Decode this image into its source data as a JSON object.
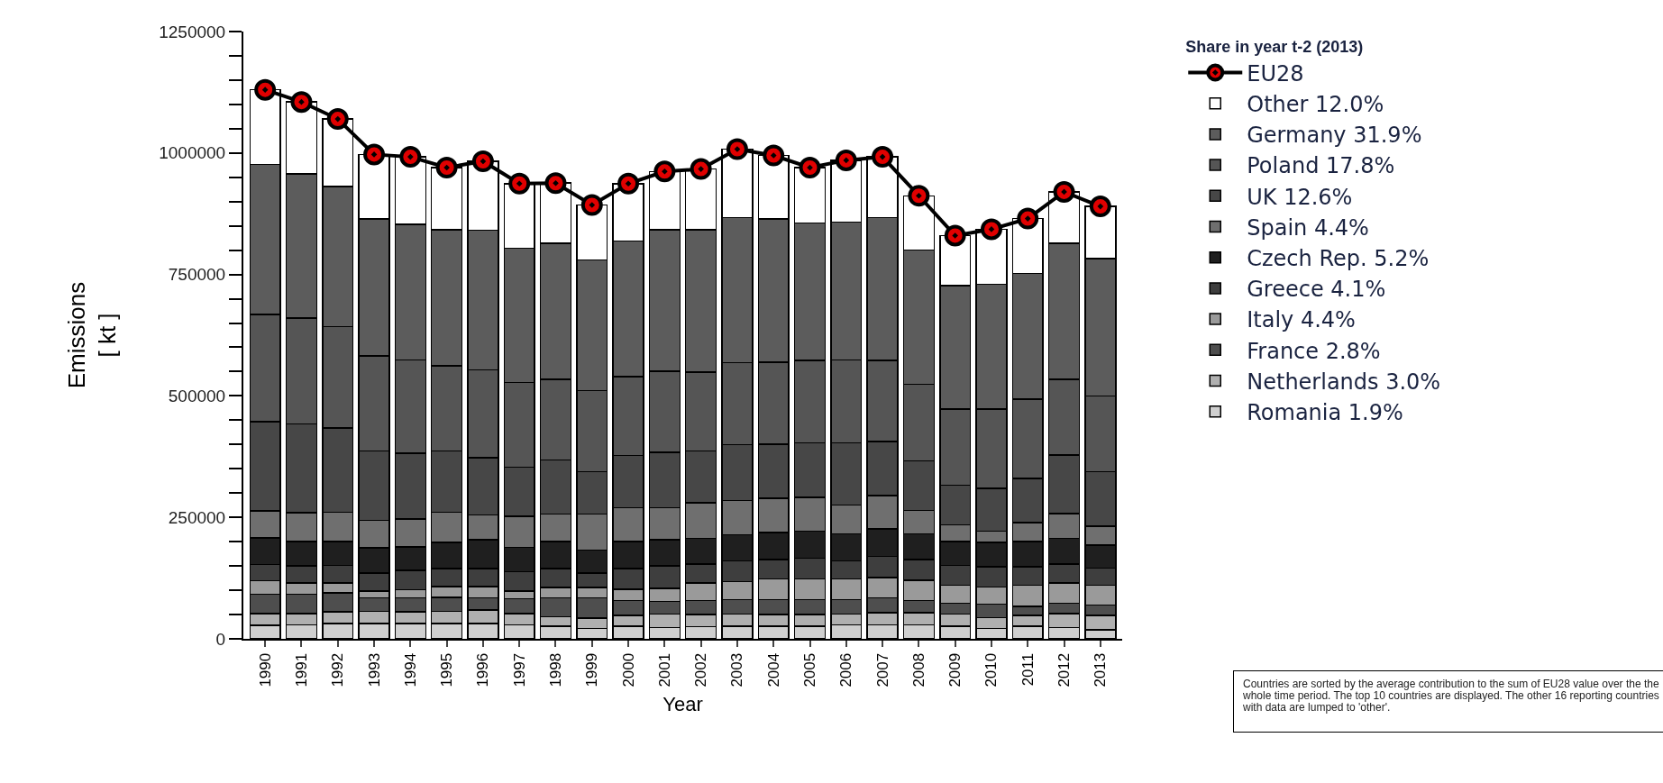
{
  "chart_data": {
    "type": "bar",
    "stacked": true,
    "xlabel": "Year",
    "ylabel": "Emissions\n[ kt ]",
    "legend_title": "Share in year t-2 (2013)",
    "categories": [
      "1990",
      "1991",
      "1992",
      "1993",
      "1994",
      "1995",
      "1996",
      "1997",
      "1998",
      "1999",
      "2000",
      "2001",
      "2002",
      "2003",
      "2004",
      "2005",
      "2006",
      "2007",
      "2008",
      "2009",
      "2010",
      "2011",
      "2012",
      "2013"
    ],
    "ylim": [
      0,
      1250000
    ],
    "yticks": [
      0,
      {
        "value": 50000,
        "label": null
      },
      {
        "value": 100000,
        "label": null
      },
      {
        "value": 150000,
        "label": null
      },
      {
        "value": 200000,
        "label": null
      },
      250000,
      {
        "value": 300000,
        "label": null
      },
      {
        "value": 350000,
        "label": null
      },
      {
        "value": 400000,
        "label": null
      },
      {
        "value": 450000,
        "label": null
      },
      500000,
      {
        "value": 550000,
        "label": null
      },
      {
        "value": 600000,
        "label": null
      },
      {
        "value": 650000,
        "label": null
      },
      {
        "value": 700000,
        "label": null
      },
      750000,
      {
        "value": 800000,
        "label": null
      },
      {
        "value": 850000,
        "label": null
      },
      {
        "value": 900000,
        "label": null
      },
      {
        "value": 950000,
        "label": null
      },
      1000000,
      {
        "value": 1050000,
        "label": null
      },
      {
        "value": 1100000,
        "label": null
      },
      {
        "value": 1150000,
        "label": null
      },
      {
        "value": 1200000,
        "label": null
      },
      1250000
    ],
    "grid": false,
    "legend": "right",
    "marker": "circle",
    "line_style": "solid",
    "series": [
      {
        "name": "Romania 1.9%",
        "color": "#cfcfcf",
        "values": [
          28000,
          29000,
          32000,
          32000,
          32000,
          32000,
          32000,
          29000,
          26000,
          21000,
          26000,
          23000,
          25000,
          26000,
          26000,
          26000,
          29000,
          29000,
          29000,
          26000,
          21000,
          26000,
          23000,
          19000
        ]
      },
      {
        "name": "Netherlands 3.0%",
        "color": "#b0b0b0",
        "values": [
          24000,
          23000,
          24000,
          25000,
          24000,
          25000,
          27000,
          23000,
          19000,
          22000,
          22000,
          28000,
          25000,
          25000,
          24000,
          24000,
          22000,
          25000,
          25000,
          25000,
          23000,
          22000,
          29000,
          29000
        ]
      },
      {
        "name": "France 2.8%",
        "color": "#4e4e4e",
        "values": [
          40000,
          40000,
          39000,
          27000,
          28000,
          28000,
          25000,
          31000,
          39000,
          41000,
          31000,
          26000,
          29000,
          30000,
          31000,
          31000,
          30000,
          30000,
          25000,
          22000,
          27000,
          19000,
          21000,
          22000
        ]
      },
      {
        "name": "Italy 4.4%",
        "color": "#9a9a9a",
        "values": [
          28000,
          23000,
          20000,
          14000,
          17000,
          23000,
          24000,
          15000,
          22000,
          22000,
          23000,
          27000,
          36000,
          37000,
          42000,
          42000,
          42000,
          42000,
          42000,
          37000,
          36000,
          43000,
          42000,
          40000
        ]
      },
      {
        "name": "Greece 4.1%",
        "color": "#3e3e3e",
        "values": [
          33000,
          35000,
          36000,
          37000,
          40000,
          37000,
          37000,
          40000,
          39000,
          29000,
          43000,
          46000,
          39000,
          42000,
          40000,
          43000,
          37000,
          44000,
          42000,
          41000,
          41000,
          38000,
          39000,
          36000
        ]
      },
      {
        "name": "Czech Rep. 5.2%",
        "color": "#1f1f1f",
        "values": [
          55000,
          50000,
          49000,
          52000,
          48000,
          53000,
          59000,
          50000,
          55000,
          48000,
          55000,
          54000,
          53000,
          54000,
          56000,
          56000,
          56000,
          56000,
          53000,
          49000,
          50000,
          52000,
          53000,
          47000
        ]
      },
      {
        "name": "Spain 4.4%",
        "color": "#6f6f6f",
        "values": [
          55000,
          60000,
          61000,
          57000,
          58000,
          63000,
          51000,
          64000,
          57000,
          74000,
          70000,
          66000,
          73000,
          71000,
          70000,
          69000,
          59000,
          69000,
          48000,
          35000,
          24000,
          39000,
          51000,
          39000
        ]
      },
      {
        "name": "UK 12.6%",
        "color": "#474747",
        "values": [
          184000,
          182000,
          173000,
          143000,
          135000,
          126000,
          118000,
          101000,
          111000,
          87000,
          107000,
          114000,
          107000,
          115000,
          112000,
          112000,
          128000,
          111000,
          102000,
          81000,
          88000,
          91000,
          120000,
          112000
        ]
      },
      {
        "name": "Poland 17.8%",
        "color": "#555555",
        "values": [
          221000,
          218000,
          209000,
          195000,
          192000,
          175000,
          181000,
          175000,
          166000,
          167000,
          163000,
          167000,
          162000,
          168000,
          168000,
          170000,
          171000,
          167000,
          158000,
          157000,
          163000,
          163000,
          156000,
          156000
        ]
      },
      {
        "name": "Germany 31.9%",
        "color": "#5c5c5c",
        "values": [
          308000,
          297000,
          288000,
          282000,
          279000,
          280000,
          287000,
          276000,
          280000,
          269000,
          279000,
          291000,
          293000,
          299000,
          295000,
          283000,
          284000,
          294000,
          276000,
          254000,
          257000,
          259000,
          280000,
          283000
        ]
      },
      {
        "name": "Other 12.0%",
        "color": "#ffffff",
        "values": [
          154000,
          148000,
          139000,
          133000,
          139000,
          128000,
          142000,
          133000,
          124000,
          113000,
          118000,
          120000,
          125000,
          141000,
          131000,
          114000,
          127000,
          125000,
          112000,
          103000,
          113000,
          113000,
          106000,
          107000
        ]
      },
      {
        "name": "EU28",
        "type": "line",
        "color": "#000000",
        "colors": [
          "#e00000",
          "#e00000",
          "#e00000",
          "#e00000",
          "#e00000",
          "#e00000",
          "#e00000",
          "#e00000",
          "#e00000",
          "#e00000",
          "#e00000",
          "#e00000",
          "#e00000",
          "#e00000",
          "#e00000",
          "#e00000",
          "#e00000",
          "#e00000",
          "#e00000",
          "#e00000",
          "#e00000",
          "#e00000",
          "#e00000",
          "#e00000"
        ],
        "values": [
          1130000,
          1105000,
          1070000,
          997000,
          992000,
          970000,
          983000,
          937000,
          938000,
          893000,
          937000,
          962000,
          967000,
          1008000,
          995000,
          970000,
          985000,
          992000,
          912000,
          830000,
          843000,
          865000,
          920000,
          890000
        ]
      }
    ],
    "annotations": [
      "Countries are sorted by the average contribution to the sum of EU28 value over the the whole time period. The top 10 countries are displayed. The other 16 reporting countries with data are lumped to 'other'."
    ]
  }
}
